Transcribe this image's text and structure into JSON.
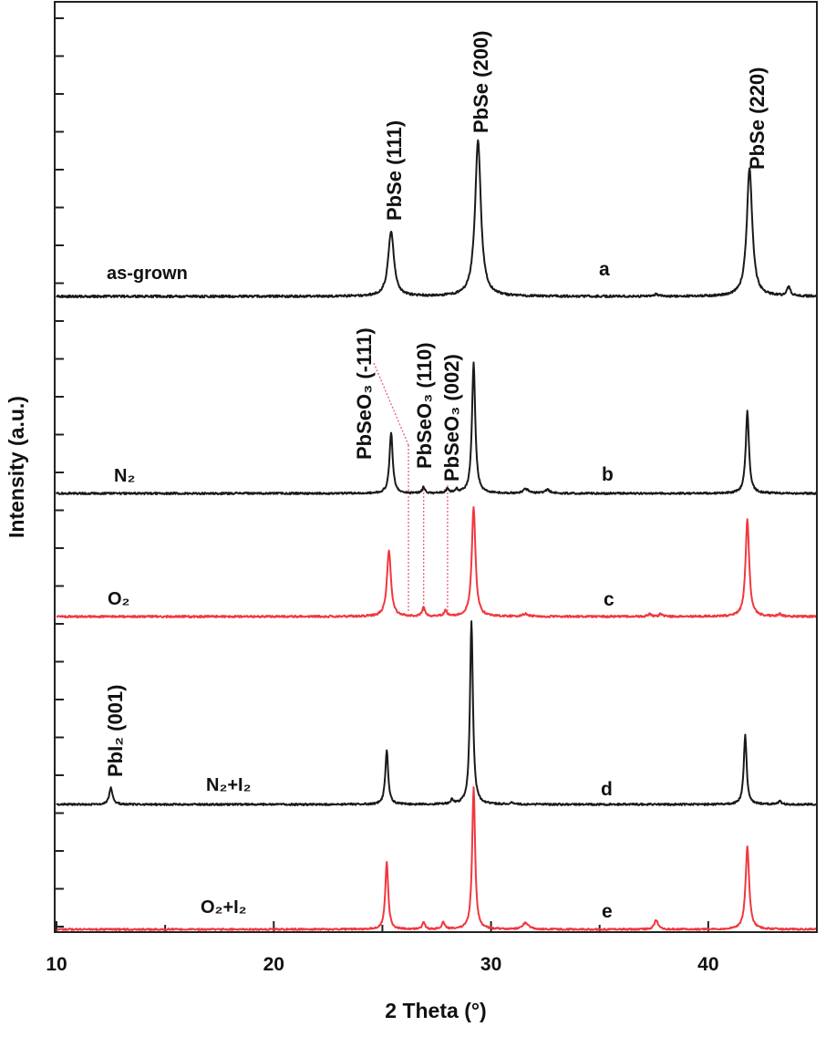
{
  "chart_data": {
    "type": "line",
    "xlabel": "2 Theta (°)",
    "ylabel": "Intensity (a.u.)",
    "xlim": [
      10,
      45
    ],
    "x_ticks": [
      10,
      20,
      30,
      40
    ],
    "x_tick_labels": [
      "10",
      "20",
      "30",
      "40"
    ],
    "colors": {
      "black": "#1a1a1a",
      "red": "#f0383f",
      "guide": "#e8607a"
    },
    "series": [
      {
        "label": "a",
        "sample": "as-grown",
        "color": "#1a1a1a",
        "peaks": [
          [
            25.4,
            6.5,
            0.16
          ],
          [
            29.4,
            15.5,
            0.16
          ],
          [
            41.9,
            12.8,
            0.15
          ],
          [
            43.7,
            0.9,
            0.1
          ],
          [
            37.6,
            0.2,
            0.1
          ]
        ]
      },
      {
        "label": "b",
        "sample": "N₂",
        "color": "#1a1a1a",
        "peaks": [
          [
            25.4,
            7.0,
            0.09
          ],
          [
            26.9,
            0.7,
            0.08
          ],
          [
            28.0,
            0.5,
            0.08
          ],
          [
            28.4,
            0.4,
            0.08
          ],
          [
            29.2,
            15.0,
            0.09
          ],
          [
            31.6,
            0.5,
            0.15
          ],
          [
            32.6,
            0.4,
            0.15
          ],
          [
            41.8,
            9.5,
            0.09
          ]
        ]
      },
      {
        "label": "c",
        "sample": "O₂",
        "color": "#f0383f",
        "peaks": [
          [
            25.3,
            7.5,
            0.11
          ],
          [
            26.9,
            1.0,
            0.08
          ],
          [
            27.9,
            0.6,
            0.08
          ],
          [
            29.2,
            12.5,
            0.1
          ],
          [
            31.6,
            0.3,
            0.15
          ],
          [
            37.3,
            0.3,
            0.08
          ],
          [
            37.8,
            0.3,
            0.08
          ],
          [
            41.8,
            11.2,
            0.1
          ],
          [
            43.3,
            0.3,
            0.08
          ]
        ]
      },
      {
        "label": "d",
        "sample": "N₂+I₂",
        "color": "#1a1a1a",
        "peaks": [
          [
            12.5,
            2.0,
            0.09
          ],
          [
            25.2,
            6.5,
            0.08
          ],
          [
            28.2,
            0.5,
            0.08
          ],
          [
            29.1,
            22.0,
            0.08
          ],
          [
            31.0,
            0.2,
            0.1
          ],
          [
            41.7,
            8.3,
            0.08
          ],
          [
            43.3,
            0.4,
            0.08
          ]
        ]
      },
      {
        "label": "e",
        "sample": "O₂+I₂",
        "color": "#f0383f",
        "peaks": [
          [
            25.2,
            9.3,
            0.08
          ],
          [
            26.9,
            0.9,
            0.08
          ],
          [
            27.8,
            1.0,
            0.08
          ],
          [
            29.2,
            19.5,
            0.08
          ],
          [
            31.6,
            0.9,
            0.15
          ],
          [
            37.6,
            1.3,
            0.1
          ],
          [
            41.8,
            11.3,
            0.1
          ]
        ]
      }
    ],
    "annotations": [
      {
        "text": "PbSe (111)",
        "x": 25.4
      },
      {
        "text": "PbSe (200)",
        "x": 29.4
      },
      {
        "text": "PbSe (220)",
        "x": 41.9
      },
      {
        "text": "PbSeO₃ (-111)",
        "x": 26.2
      },
      {
        "text": "PbSeO₃ (110)",
        "x": 26.9
      },
      {
        "text": "PbSeO₃ (002)",
        "x": 28.0
      },
      {
        "text": "PbI₂ (001)",
        "x": 12.5
      }
    ]
  }
}
